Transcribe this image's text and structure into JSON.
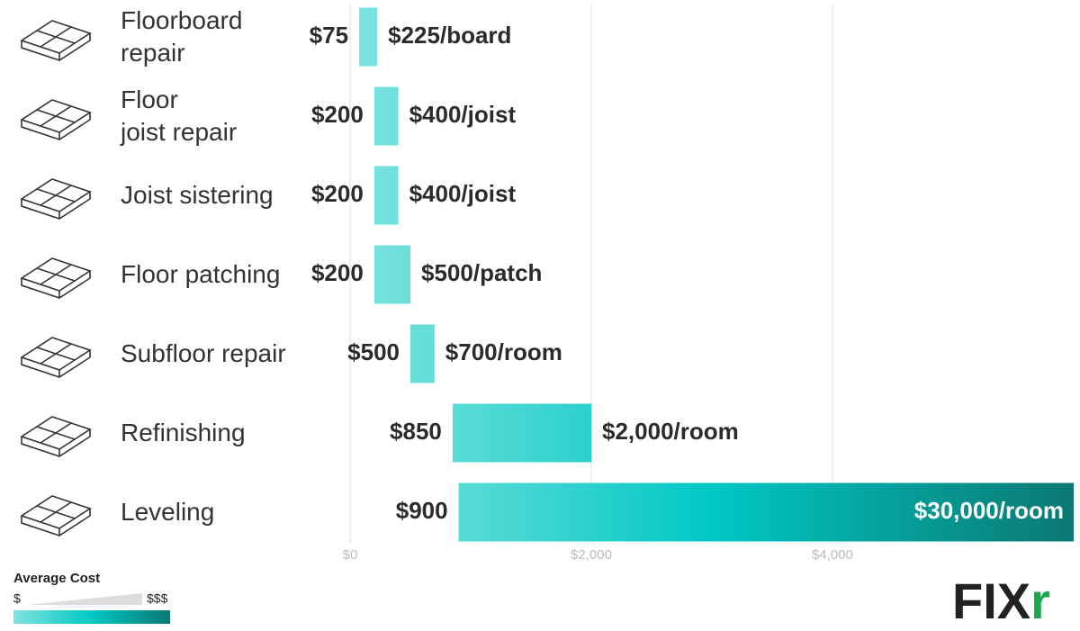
{
  "chart_data": {
    "type": "range-bar",
    "categories": [
      "Floorboard\nrepair",
      "Floor\njoist repair",
      "Joist sistering",
      "Floor patching",
      "Subfloor repair",
      "Refinishing",
      "Leveling"
    ],
    "low": {
      "values": [
        75,
        200,
        200,
        200,
        500,
        850,
        900
      ],
      "value_labels": [
        "$75",
        "$200",
        "$200",
        "$200",
        "$500",
        "$850",
        "$900"
      ]
    },
    "high": {
      "values": [
        225,
        400,
        400,
        500,
        700,
        2000,
        30000
      ],
      "value_labels": [
        "$225/board",
        "$400/joist",
        "$400/joist",
        "$500/patch",
        "$700/room",
        "$2,000/room",
        "$30,000/room"
      ]
    },
    "xlim": [
      0,
      6000
    ],
    "xticks": [
      {
        "value": 0,
        "label": "$0"
      },
      {
        "value": 2000,
        "label": "$2,000"
      },
      {
        "value": 4000,
        "label": "$4,000"
      }
    ],
    "grid": true,
    "gradient": [
      "#7fe3df",
      "#00c8c4",
      "#0b7873"
    ],
    "legend": {
      "title": "Average Cost",
      "low": "$",
      "high": "$$$"
    },
    "logo": {
      "main": "FIX",
      "accent": "r"
    }
  }
}
